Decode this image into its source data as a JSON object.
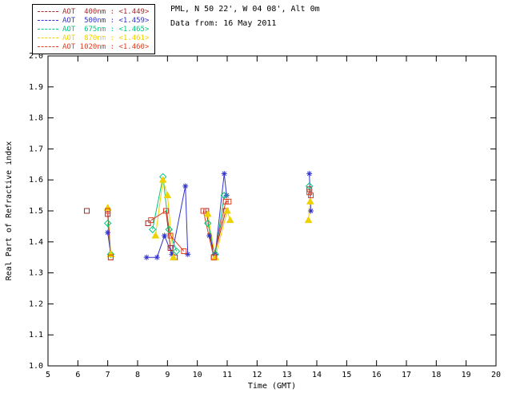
{
  "header": {
    "line1": "PML, N 50 22', W 04 08', Alt 0m",
    "line2": "Data from: 16 May 2011"
  },
  "legend": {
    "items": [
      {
        "label": "AOT  400nm : <1.449>",
        "color": "#A52A2A"
      },
      {
        "label": "AOT  500nm : <1.459>",
        "color": "#3333CC"
      },
      {
        "label": "AOT  675nm : <1.465>",
        "color": "#00C87D"
      },
      {
        "label": "AOT  870nm : <1.461>",
        "color": "#EFD000"
      },
      {
        "label": "AOT 1020nm : <1.460>",
        "color": "#E03C20"
      }
    ]
  },
  "chart_data": {
    "type": "line",
    "title": "",
    "xlabel": "Time (GMT)",
    "ylabel": "Real Part of Refractive index",
    "xlim": [
      5,
      20
    ],
    "ylim": [
      1.0,
      2.0
    ],
    "xticks": [
      "5",
      "6",
      "7",
      "8",
      "9",
      "10",
      "11",
      "12",
      "13",
      "14",
      "15",
      "16",
      "17",
      "18",
      "19",
      "20"
    ],
    "yticks": [
      "1.0",
      "1.1",
      "1.2",
      "1.3",
      "1.4",
      "1.5",
      "1.6",
      "1.7",
      "1.8",
      "1.9",
      "2.0"
    ],
    "grid": false,
    "legend_position": "top-left",
    "axis_color": "#000000",
    "series": [
      {
        "name": "AOT 400nm",
        "mean": "<1.449>",
        "color": "#A52A2A",
        "marker": "square",
        "points": [
          [
            6.3,
            1.5
          ],
          [
            7.0,
            1.49
          ],
          [
            7.1,
            1.35
          ],
          [
            8.35,
            1.46
          ],
          [
            8.95,
            1.5
          ],
          [
            9.1,
            1.38
          ],
          [
            9.25,
            1.35
          ],
          [
            10.3,
            1.5
          ],
          [
            10.55,
            1.35
          ],
          [
            10.95,
            1.5
          ],
          [
            13.75,
            1.57
          ]
        ]
      },
      {
        "name": "AOT 500nm",
        "mean": "<1.459>",
        "color": "#3333CC",
        "marker": "asterisk",
        "points": [
          [
            7.0,
            1.43
          ],
          [
            7.1,
            1.36
          ],
          [
            8.3,
            1.35
          ],
          [
            8.65,
            1.35
          ],
          [
            8.9,
            1.42
          ],
          [
            9.15,
            1.36
          ],
          [
            9.6,
            1.58
          ],
          [
            9.68,
            1.36
          ],
          [
            10.4,
            1.42
          ],
          [
            10.6,
            1.36
          ],
          [
            10.9,
            1.62
          ],
          [
            10.98,
            1.55
          ],
          [
            13.75,
            1.62
          ],
          [
            13.8,
            1.5
          ]
        ]
      },
      {
        "name": "AOT 675nm",
        "mean": "<1.465>",
        "color": "#00C87D",
        "marker": "diamond",
        "points": [
          [
            7.0,
            1.46
          ],
          [
            7.1,
            1.36
          ],
          [
            8.5,
            1.44
          ],
          [
            8.85,
            1.61
          ],
          [
            9.05,
            1.44
          ],
          [
            9.3,
            1.37
          ],
          [
            10.35,
            1.46
          ],
          [
            10.6,
            1.36
          ],
          [
            10.9,
            1.55
          ],
          [
            13.75,
            1.58
          ]
        ]
      },
      {
        "name": "AOT 870nm",
        "mean": "<1.461>",
        "color": "#EFD000",
        "marker": "triangle",
        "points": [
          [
            7.0,
            1.51
          ],
          [
            7.1,
            1.36
          ],
          [
            8.6,
            1.42
          ],
          [
            8.85,
            1.6
          ],
          [
            9.0,
            1.55
          ],
          [
            9.2,
            1.35
          ],
          [
            10.35,
            1.49
          ],
          [
            10.6,
            1.35
          ],
          [
            11.0,
            1.5
          ],
          [
            11.1,
            1.47
          ],
          [
            13.72,
            1.47
          ],
          [
            13.78,
            1.53
          ]
        ]
      },
      {
        "name": "AOT 1020nm",
        "mean": "<1.460>",
        "color": "#E03C20",
        "marker": "square",
        "points": [
          [
            7.0,
            1.5
          ],
          [
            7.1,
            1.35
          ],
          [
            8.45,
            1.47
          ],
          [
            8.95,
            1.5
          ],
          [
            9.1,
            1.42
          ],
          [
            9.55,
            1.37
          ],
          [
            10.2,
            1.5
          ],
          [
            10.55,
            1.35
          ],
          [
            10.95,
            1.53
          ],
          [
            11.05,
            1.53
          ],
          [
            13.75,
            1.56
          ],
          [
            13.8,
            1.55
          ]
        ]
      }
    ]
  }
}
